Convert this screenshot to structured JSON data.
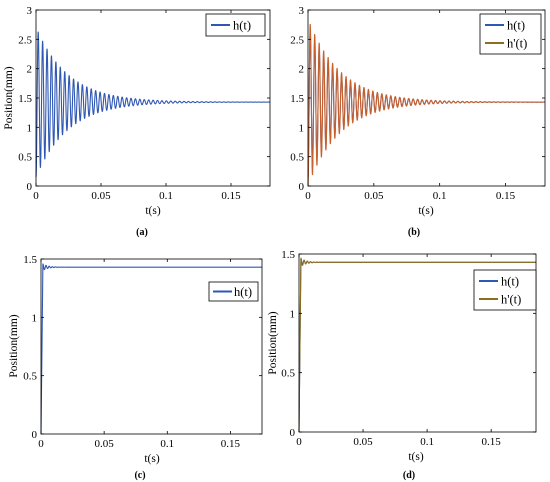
{
  "colors": {
    "h": "#2f57b4",
    "h_prime": "#8b6f1e",
    "h_prime_b": "#c8602c"
  },
  "chart_data": [
    {
      "id": "a",
      "type": "line",
      "caption": "(a)",
      "xlabel": "t(s)",
      "ylabel": "Position(mm)",
      "xlim": [
        0,
        0.18
      ],
      "ylim": [
        0,
        3
      ],
      "xticks": [
        "0",
        "0.05",
        "0.1",
        "0.15"
      ],
      "yticks": [
        "0",
        "0.5",
        "1",
        "1.5",
        "2",
        "2.5",
        "3"
      ],
      "legend_position": "top-right",
      "series": [
        {
          "name": "h(t)",
          "model": {
            "steady": 1.43,
            "amplitude": 1.28,
            "decay": 0.0245,
            "period": 0.0034,
            "duration": 0.18
          }
        }
      ]
    },
    {
      "id": "b",
      "type": "line",
      "caption": "(b)",
      "xlabel": "t(s)",
      "ylabel": "",
      "xlim": [
        0,
        0.18
      ],
      "ylim": [
        0,
        3
      ],
      "xticks": [
        "0",
        "0.05",
        "0.1",
        "0.15"
      ],
      "yticks": [
        "0",
        "0.5",
        "1",
        "1.5",
        "2",
        "2.5",
        "3"
      ],
      "legend_position": "top-right",
      "series": [
        {
          "name": "h(t)",
          "model": {
            "steady": 1.43,
            "amplitude": 1.28,
            "decay": 0.0245,
            "period": 0.0034,
            "duration": 0.18
          }
        },
        {
          "name": "h'(t)",
          "model": {
            "steady": 1.43,
            "amplitude": 1.42,
            "decay": 0.0245,
            "period": 0.0034,
            "duration": 0.18
          }
        }
      ]
    },
    {
      "id": "c",
      "type": "line",
      "caption": "(c)",
      "xlabel": "t(s)",
      "ylabel": "Position(mm)",
      "xlim": [
        0,
        0.175
      ],
      "ylim": [
        0,
        1.5
      ],
      "xticks": [
        "0",
        "0.05",
        "0.1",
        "0.15"
      ],
      "yticks": [
        "0",
        "0.5",
        "1",
        "1.5"
      ],
      "legend_position": "top-right",
      "series": [
        {
          "name": "h(t)",
          "model": {
            "steady": 1.43,
            "rise_time": 0.0015,
            "overshoot": 0.02,
            "decay": 0.004,
            "period": 0.0025,
            "duration": 0.175
          }
        }
      ]
    },
    {
      "id": "d",
      "type": "line",
      "caption": "(d)",
      "xlabel": "t(s)",
      "ylabel": "Position(mm)",
      "xlim": [
        0,
        0.185
      ],
      "ylim": [
        0,
        1.5
      ],
      "xticks": [
        "0",
        "0.05",
        "0.1",
        "0.15"
      ],
      "yticks": [
        "0",
        "0.5",
        "1",
        "1.5"
      ],
      "legend_position": "top-right",
      "series": [
        {
          "name": "h(t)",
          "model": {
            "steady": 1.43,
            "rise_time": 0.0015,
            "overshoot": 0.02,
            "decay": 0.004,
            "period": 0.0025,
            "duration": 0.185
          }
        },
        {
          "name": "h'(t)",
          "model": {
            "steady": 1.43,
            "rise_time": 0.0015,
            "overshoot": 0.025,
            "decay": 0.004,
            "period": 0.0025,
            "duration": 0.185
          }
        }
      ]
    }
  ]
}
